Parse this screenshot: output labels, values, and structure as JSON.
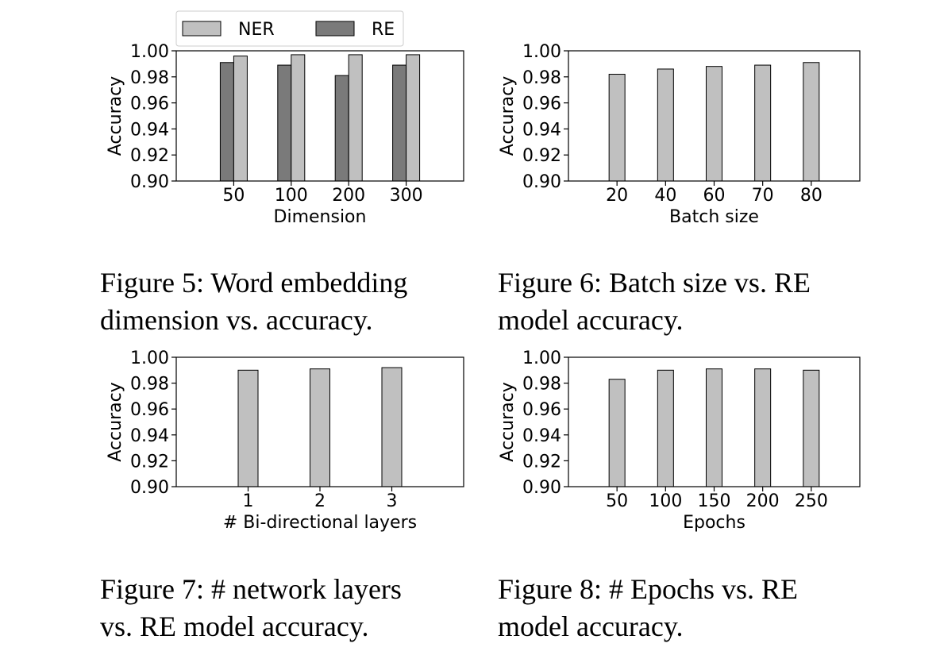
{
  "chart_data": [
    {
      "id": "fig5",
      "type": "bar",
      "xlabel": "Dimension",
      "ylabel": "Accuracy",
      "categories": [
        "50",
        "100",
        "200",
        "300"
      ],
      "series": [
        {
          "name": "RE",
          "color": "#7a7a7a",
          "values": [
            0.991,
            0.989,
            0.981,
            0.989
          ]
        },
        {
          "name": "NER",
          "color": "#c0c0c0",
          "values": [
            0.996,
            0.997,
            0.997,
            0.997
          ]
        }
      ],
      "ylim": [
        0.9,
        1.0
      ],
      "yticks": [
        "0.90",
        "0.92",
        "0.94",
        "0.96",
        "0.98",
        "1.00"
      ],
      "legend": {
        "position": "top",
        "entries": [
          "NER",
          "RE"
        ]
      },
      "grid": false
    },
    {
      "id": "fig6",
      "type": "bar",
      "xlabel": "Batch size",
      "ylabel": "Accuracy",
      "categories": [
        "20",
        "40",
        "60",
        "70",
        "80"
      ],
      "series": [
        {
          "color": "#c0c0c0",
          "values": [
            0.982,
            0.986,
            0.988,
            0.989,
            0.991
          ]
        }
      ],
      "ylim": [
        0.9,
        1.0
      ],
      "yticks": [
        "0.90",
        "0.92",
        "0.94",
        "0.96",
        "0.98",
        "1.00"
      ],
      "grid": false
    },
    {
      "id": "fig7",
      "type": "bar",
      "xlabel": "# Bi-directional layers",
      "ylabel": "Accuracy",
      "categories": [
        "1",
        "2",
        "3"
      ],
      "series": [
        {
          "color": "#c0c0c0",
          "values": [
            0.99,
            0.991,
            0.992
          ]
        }
      ],
      "ylim": [
        0.9,
        1.0
      ],
      "yticks": [
        "0.90",
        "0.92",
        "0.94",
        "0.96",
        "0.98",
        "1.00"
      ],
      "grid": false
    },
    {
      "id": "fig8",
      "type": "bar",
      "xlabel": "Epochs",
      "ylabel": "Accuracy",
      "categories": [
        "50",
        "100",
        "150",
        "200",
        "250"
      ],
      "series": [
        {
          "color": "#c0c0c0",
          "values": [
            0.983,
            0.99,
            0.991,
            0.991,
            0.99
          ]
        }
      ],
      "ylim": [
        0.9,
        1.0
      ],
      "yticks": [
        "0.90",
        "0.92",
        "0.94",
        "0.96",
        "0.98",
        "1.00"
      ],
      "grid": false
    }
  ],
  "captions": {
    "fig5": [
      "Figure 5:  Word embedding",
      "dimension vs. accuracy."
    ],
    "fig6": [
      "Figure 6: Batch size vs.  RE",
      "model accuracy."
    ],
    "fig7": [
      "Figure 7:  # network layers",
      "vs. RE model accuracy."
    ],
    "fig8": [
      "Figure 8: # Epochs vs.  RE",
      "model accuracy."
    ]
  }
}
